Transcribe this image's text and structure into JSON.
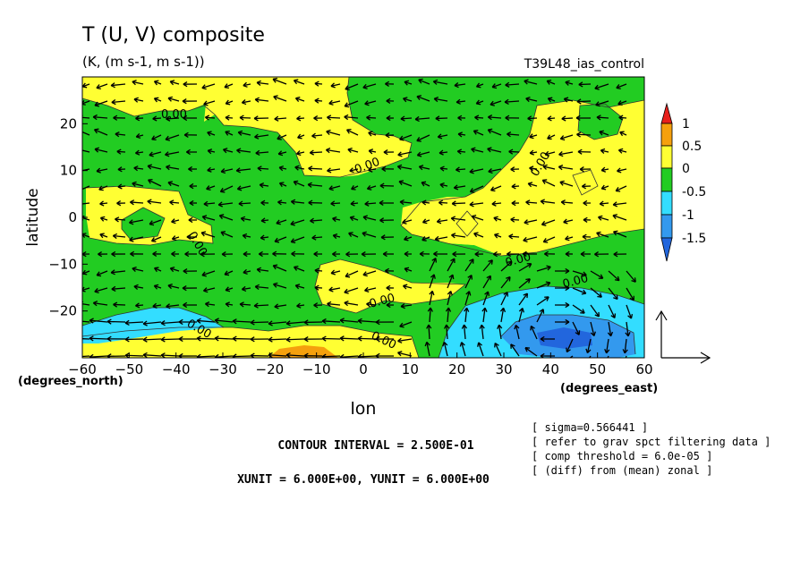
{
  "chart_data": {
    "type": "contour",
    "title": "T (U, V) composite",
    "subtitle": "(K, (m s-1, m s-1))",
    "run_label": "T39L48_ias_control",
    "xlabel": "lon",
    "ylabel": "latitude",
    "x_unit_label": "(degrees_east)",
    "y_unit_label": "(degrees_north)",
    "xlim": [
      -60,
      60
    ],
    "ylim": [
      -30,
      30
    ],
    "x_ticks": [
      -60,
      -50,
      -40,
      -30,
      -20,
      -10,
      0,
      10,
      20,
      30,
      40,
      50,
      60
    ],
    "y_ticks": [
      -20,
      -10,
      0,
      10,
      20
    ],
    "colorbar": {
      "levels": [
        1,
        0.5,
        0,
        -0.5,
        -1,
        -1.5
      ],
      "colors": [
        "#e8201c",
        "#f5a00d",
        "#ffff33",
        "#22cc22",
        "#33ddff",
        "#3399ee",
        "#2266dd"
      ]
    },
    "contour_labels": [
      "0.00",
      "0.00",
      "0.00",
      "0.00",
      "0.00",
      "0.00",
      "0.00",
      "0.00",
      "0.00"
    ],
    "footer_left": [
      "CONTOUR INTERVAL = 2.500E-01",
      "XUNIT = 6.000E+00, YUNIT = 6.000E+00"
    ],
    "footer_right": [
      "[ sigma=0.566441 ]",
      "[ refer to grav spct filtering data ]",
      "[ comp threshold = 6.0e-05 ]",
      "[ (diff) from (mean) zonal ]"
    ]
  }
}
